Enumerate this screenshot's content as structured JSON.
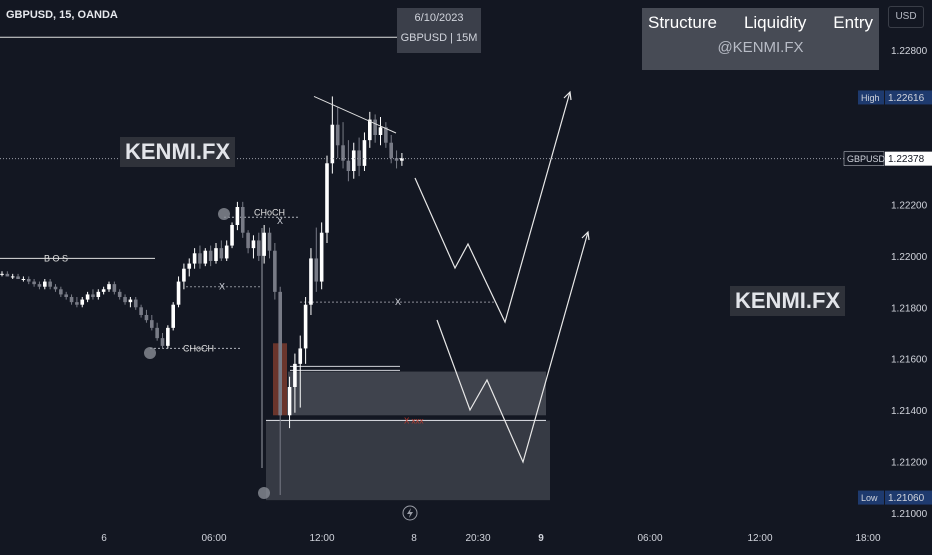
{
  "header": {
    "symbol_line": "GBPUSD, 15, OANDA",
    "currency_button": "USD"
  },
  "date_box": {
    "date": "6/10/2023",
    "pair": "GBPUSD | 15M"
  },
  "tag_box": {
    "tags": [
      "Structure",
      "Liquidity",
      "Entry"
    ],
    "handle": "@KENMI.FX"
  },
  "watermarks": [
    "KENMI.FX",
    "KENMI.FX"
  ],
  "annotations": {
    "bos": "B O S",
    "choch_low": "CHoCH",
    "choch_high": "CHoCH",
    "x_mark": "X",
    "x_entry": "X xxx"
  },
  "colors": {
    "background": "#131722",
    "candle_up": "#ffffff",
    "candle_down": "#787b86",
    "zone": "#3b3e48",
    "orderblock": "#7a3b2e",
    "high_badge": "#1e3a6e",
    "low_badge": "#1e3a6e",
    "price_badge": "#ffffff"
  },
  "chart_data": {
    "type": "candlestick",
    "symbol": "GBPUSD",
    "timeframe": "15",
    "broker": "OANDA",
    "y_axis": {
      "range": [
        1.20965,
        1.22995
      ],
      "ticks": [
        1.228,
        1.226,
        1.224,
        1.222,
        1.22,
        1.218,
        1.216,
        1.214,
        1.212,
        1.21
      ],
      "tick_labels": [
        "1.22800",
        "",
        "",
        "1.22200",
        "1.22000",
        "1.21800",
        "1.21600",
        "1.21400",
        "1.21200",
        "1.21000"
      ]
    },
    "x_axis": {
      "tick_labels": [
        "6",
        "06:00",
        "12:00",
        "8",
        "20:30",
        "9",
        "06:00",
        "12:00",
        "18:00"
      ],
      "bold_labels": [
        "9"
      ]
    },
    "price_markers": [
      {
        "label": "High",
        "value": "1.22616",
        "price": 1.22616
      },
      {
        "label": "GBPUSD",
        "value": "1.22378",
        "price": 1.22378
      },
      {
        "label": "Low",
        "value": "1.21060",
        "price": 1.2106
      }
    ],
    "candles": [
      {
        "o": 1.2193,
        "h": 1.2194,
        "l": 1.2192,
        "c": 1.2193
      },
      {
        "o": 1.2193,
        "h": 1.2194,
        "l": 1.2192,
        "c": 1.2192
      },
      {
        "o": 1.2192,
        "h": 1.2193,
        "l": 1.2191,
        "c": 1.2192
      },
      {
        "o": 1.2192,
        "h": 1.2193,
        "l": 1.2191,
        "c": 1.2191
      },
      {
        "o": 1.2191,
        "h": 1.2192,
        "l": 1.219,
        "c": 1.2191
      },
      {
        "o": 1.2191,
        "h": 1.2192,
        "l": 1.2189,
        "c": 1.219
      },
      {
        "o": 1.219,
        "h": 1.2191,
        "l": 1.2188,
        "c": 1.2189
      },
      {
        "o": 1.2189,
        "h": 1.219,
        "l": 1.2187,
        "c": 1.2188
      },
      {
        "o": 1.2188,
        "h": 1.2191,
        "l": 1.2187,
        "c": 1.219
      },
      {
        "o": 1.219,
        "h": 1.2191,
        "l": 1.2187,
        "c": 1.2188
      },
      {
        "o": 1.2188,
        "h": 1.2189,
        "l": 1.2186,
        "c": 1.2187
      },
      {
        "o": 1.2187,
        "h": 1.2188,
        "l": 1.2184,
        "c": 1.2185
      },
      {
        "o": 1.2185,
        "h": 1.2186,
        "l": 1.2183,
        "c": 1.2184
      },
      {
        "o": 1.2184,
        "h": 1.2185,
        "l": 1.2181,
        "c": 1.2182
      },
      {
        "o": 1.2182,
        "h": 1.2184,
        "l": 1.218,
        "c": 1.2181
      },
      {
        "o": 1.2181,
        "h": 1.2184,
        "l": 1.218,
        "c": 1.2183
      },
      {
        "o": 1.2183,
        "h": 1.2186,
        "l": 1.2182,
        "c": 1.2185
      },
      {
        "o": 1.2185,
        "h": 1.2187,
        "l": 1.2183,
        "c": 1.2184
      },
      {
        "o": 1.2184,
        "h": 1.2187,
        "l": 1.2183,
        "c": 1.2186
      },
      {
        "o": 1.2186,
        "h": 1.2188,
        "l": 1.2185,
        "c": 1.2187
      },
      {
        "o": 1.2187,
        "h": 1.219,
        "l": 1.2186,
        "c": 1.2189
      },
      {
        "o": 1.2189,
        "h": 1.219,
        "l": 1.2185,
        "c": 1.2186
      },
      {
        "o": 1.2186,
        "h": 1.2187,
        "l": 1.2183,
        "c": 1.2184
      },
      {
        "o": 1.2184,
        "h": 1.2185,
        "l": 1.2181,
        "c": 1.2182
      },
      {
        "o": 1.2182,
        "h": 1.2184,
        "l": 1.218,
        "c": 1.2183
      },
      {
        "o": 1.2183,
        "h": 1.2184,
        "l": 1.2179,
        "c": 1.218
      },
      {
        "o": 1.218,
        "h": 1.2181,
        "l": 1.2176,
        "c": 1.2177
      },
      {
        "o": 1.2177,
        "h": 1.2179,
        "l": 1.2174,
        "c": 1.2175
      },
      {
        "o": 1.2175,
        "h": 1.2177,
        "l": 1.2171,
        "c": 1.2172
      },
      {
        "o": 1.2172,
        "h": 1.2174,
        "l": 1.2167,
        "c": 1.2168
      },
      {
        "o": 1.2168,
        "h": 1.217,
        "l": 1.2164,
        "c": 1.2165
      },
      {
        "o": 1.2165,
        "h": 1.2173,
        "l": 1.2164,
        "c": 1.2172
      },
      {
        "o": 1.2172,
        "h": 1.2182,
        "l": 1.2171,
        "c": 1.2181
      },
      {
        "o": 1.2181,
        "h": 1.2192,
        "l": 1.218,
        "c": 1.219
      },
      {
        "o": 1.219,
        "h": 1.2197,
        "l": 1.2187,
        "c": 1.2195
      },
      {
        "o": 1.2195,
        "h": 1.2199,
        "l": 1.2192,
        "c": 1.2197
      },
      {
        "o": 1.2197,
        "h": 1.2203,
        "l": 1.2195,
        "c": 1.2201
      },
      {
        "o": 1.2201,
        "h": 1.2204,
        "l": 1.2195,
        "c": 1.2197
      },
      {
        "o": 1.2197,
        "h": 1.2203,
        "l": 1.2196,
        "c": 1.2202
      },
      {
        "o": 1.2202,
        "h": 1.2204,
        "l": 1.2196,
        "c": 1.2198
      },
      {
        "o": 1.2198,
        "h": 1.2205,
        "l": 1.2197,
        "c": 1.2203
      },
      {
        "o": 1.2203,
        "h": 1.2206,
        "l": 1.2198,
        "c": 1.2199
      },
      {
        "o": 1.2199,
        "h": 1.2206,
        "l": 1.2198,
        "c": 1.2204
      },
      {
        "o": 1.2204,
        "h": 1.2213,
        "l": 1.2203,
        "c": 1.2212
      },
      {
        "o": 1.2212,
        "h": 1.2221,
        "l": 1.221,
        "c": 1.2219
      },
      {
        "o": 1.2219,
        "h": 1.2221,
        "l": 1.2207,
        "c": 1.2209
      },
      {
        "o": 1.2209,
        "h": 1.221,
        "l": 1.2201,
        "c": 1.2203
      },
      {
        "o": 1.2203,
        "h": 1.2208,
        "l": 1.2199,
        "c": 1.2206
      },
      {
        "o": 1.2206,
        "h": 1.2209,
        "l": 1.2198,
        "c": 1.22
      },
      {
        "o": 1.22,
        "h": 1.2212,
        "l": 1.2197,
        "c": 1.2209
      },
      {
        "o": 1.2209,
        "h": 1.2211,
        "l": 1.2199,
        "c": 1.2202
      },
      {
        "o": 1.2202,
        "h": 1.2205,
        "l": 1.2183,
        "c": 1.2186
      },
      {
        "o": 1.2186,
        "h": 1.2188,
        "l": 1.2107,
        "c": 1.2138
      },
      {
        "o": 1.2138,
        "h": 1.2153,
        "l": 1.2133,
        "c": 1.2149
      },
      {
        "o": 1.2149,
        "h": 1.2162,
        "l": 1.2139,
        "c": 1.2158
      },
      {
        "o": 1.2158,
        "h": 1.2169,
        "l": 1.2141,
        "c": 1.2164
      },
      {
        "o": 1.2164,
        "h": 1.2184,
        "l": 1.2158,
        "c": 1.2181
      },
      {
        "o": 1.2181,
        "h": 1.2203,
        "l": 1.2177,
        "c": 1.2199
      },
      {
        "o": 1.2199,
        "h": 1.2211,
        "l": 1.2186,
        "c": 1.219
      },
      {
        "o": 1.219,
        "h": 1.2213,
        "l": 1.2187,
        "c": 1.2209
      },
      {
        "o": 1.2209,
        "h": 1.2239,
        "l": 1.2205,
        "c": 1.2236
      },
      {
        "o": 1.2236,
        "h": 1.2262,
        "l": 1.2232,
        "c": 1.2251
      },
      {
        "o": 1.2251,
        "h": 1.2258,
        "l": 1.2238,
        "c": 1.2243
      },
      {
        "o": 1.2243,
        "h": 1.2252,
        "l": 1.2234,
        "c": 1.2237
      },
      {
        "o": 1.2237,
        "h": 1.2245,
        "l": 1.2229,
        "c": 1.2233
      },
      {
        "o": 1.2233,
        "h": 1.2244,
        "l": 1.223,
        "c": 1.2241
      },
      {
        "o": 1.2241,
        "h": 1.2246,
        "l": 1.2231,
        "c": 1.2235
      },
      {
        "o": 1.2235,
        "h": 1.2248,
        "l": 1.2233,
        "c": 1.2245
      },
      {
        "o": 1.2245,
        "h": 1.2256,
        "l": 1.2242,
        "c": 1.2253
      },
      {
        "o": 1.2253,
        "h": 1.2255,
        "l": 1.2244,
        "c": 1.2247
      },
      {
        "o": 1.2247,
        "h": 1.2254,
        "l": 1.2243,
        "c": 1.225
      },
      {
        "o": 1.225,
        "h": 1.2252,
        "l": 1.2242,
        "c": 1.2244
      },
      {
        "o": 1.2244,
        "h": 1.2247,
        "l": 1.2236,
        "c": 1.2238
      },
      {
        "o": 1.2238,
        "h": 1.2241,
        "l": 1.2234,
        "c": 1.2237
      },
      {
        "o": 1.2237,
        "h": 1.224,
        "l": 1.2235,
        "c": 1.2238
      }
    ],
    "levels": [
      {
        "name": "top-line",
        "price": 1.2285
      },
      {
        "name": "bos",
        "price": 1.2199
      },
      {
        "name": "choch-low",
        "price": 1.2164
      },
      {
        "name": "choch-high",
        "price": 1.2215
      },
      {
        "name": "x-high",
        "price": 1.2188
      },
      {
        "name": "x-mid",
        "price": 1.2182
      },
      {
        "name": "liquidity",
        "price": 1.2157
      }
    ],
    "zones": [
      {
        "name": "upper-zone",
        "top": 1.2155,
        "bottom": 1.2138
      },
      {
        "name": "lower-zone",
        "top": 1.2136,
        "bottom": 1.2105
      },
      {
        "name": "orderblock",
        "top": 1.2166,
        "bottom": 1.2138
      }
    ],
    "projections": [
      {
        "name": "projection-1",
        "points": [
          [
            1.2236,
            0
          ],
          [
            1.2198,
            1
          ],
          [
            1.2203,
            2
          ],
          [
            1.2178,
            3
          ],
          [
            1.2275,
            4
          ]
        ]
      },
      {
        "name": "projection-2",
        "points": [
          [
            1.218,
            0
          ],
          [
            1.2141,
            1
          ],
          [
            1.2152,
            2
          ],
          [
            1.212,
            3
          ],
          [
            1.2213,
            4
          ]
        ]
      }
    ],
    "trendline": {
      "from": 1.2262,
      "to": 1.2254
    }
  }
}
